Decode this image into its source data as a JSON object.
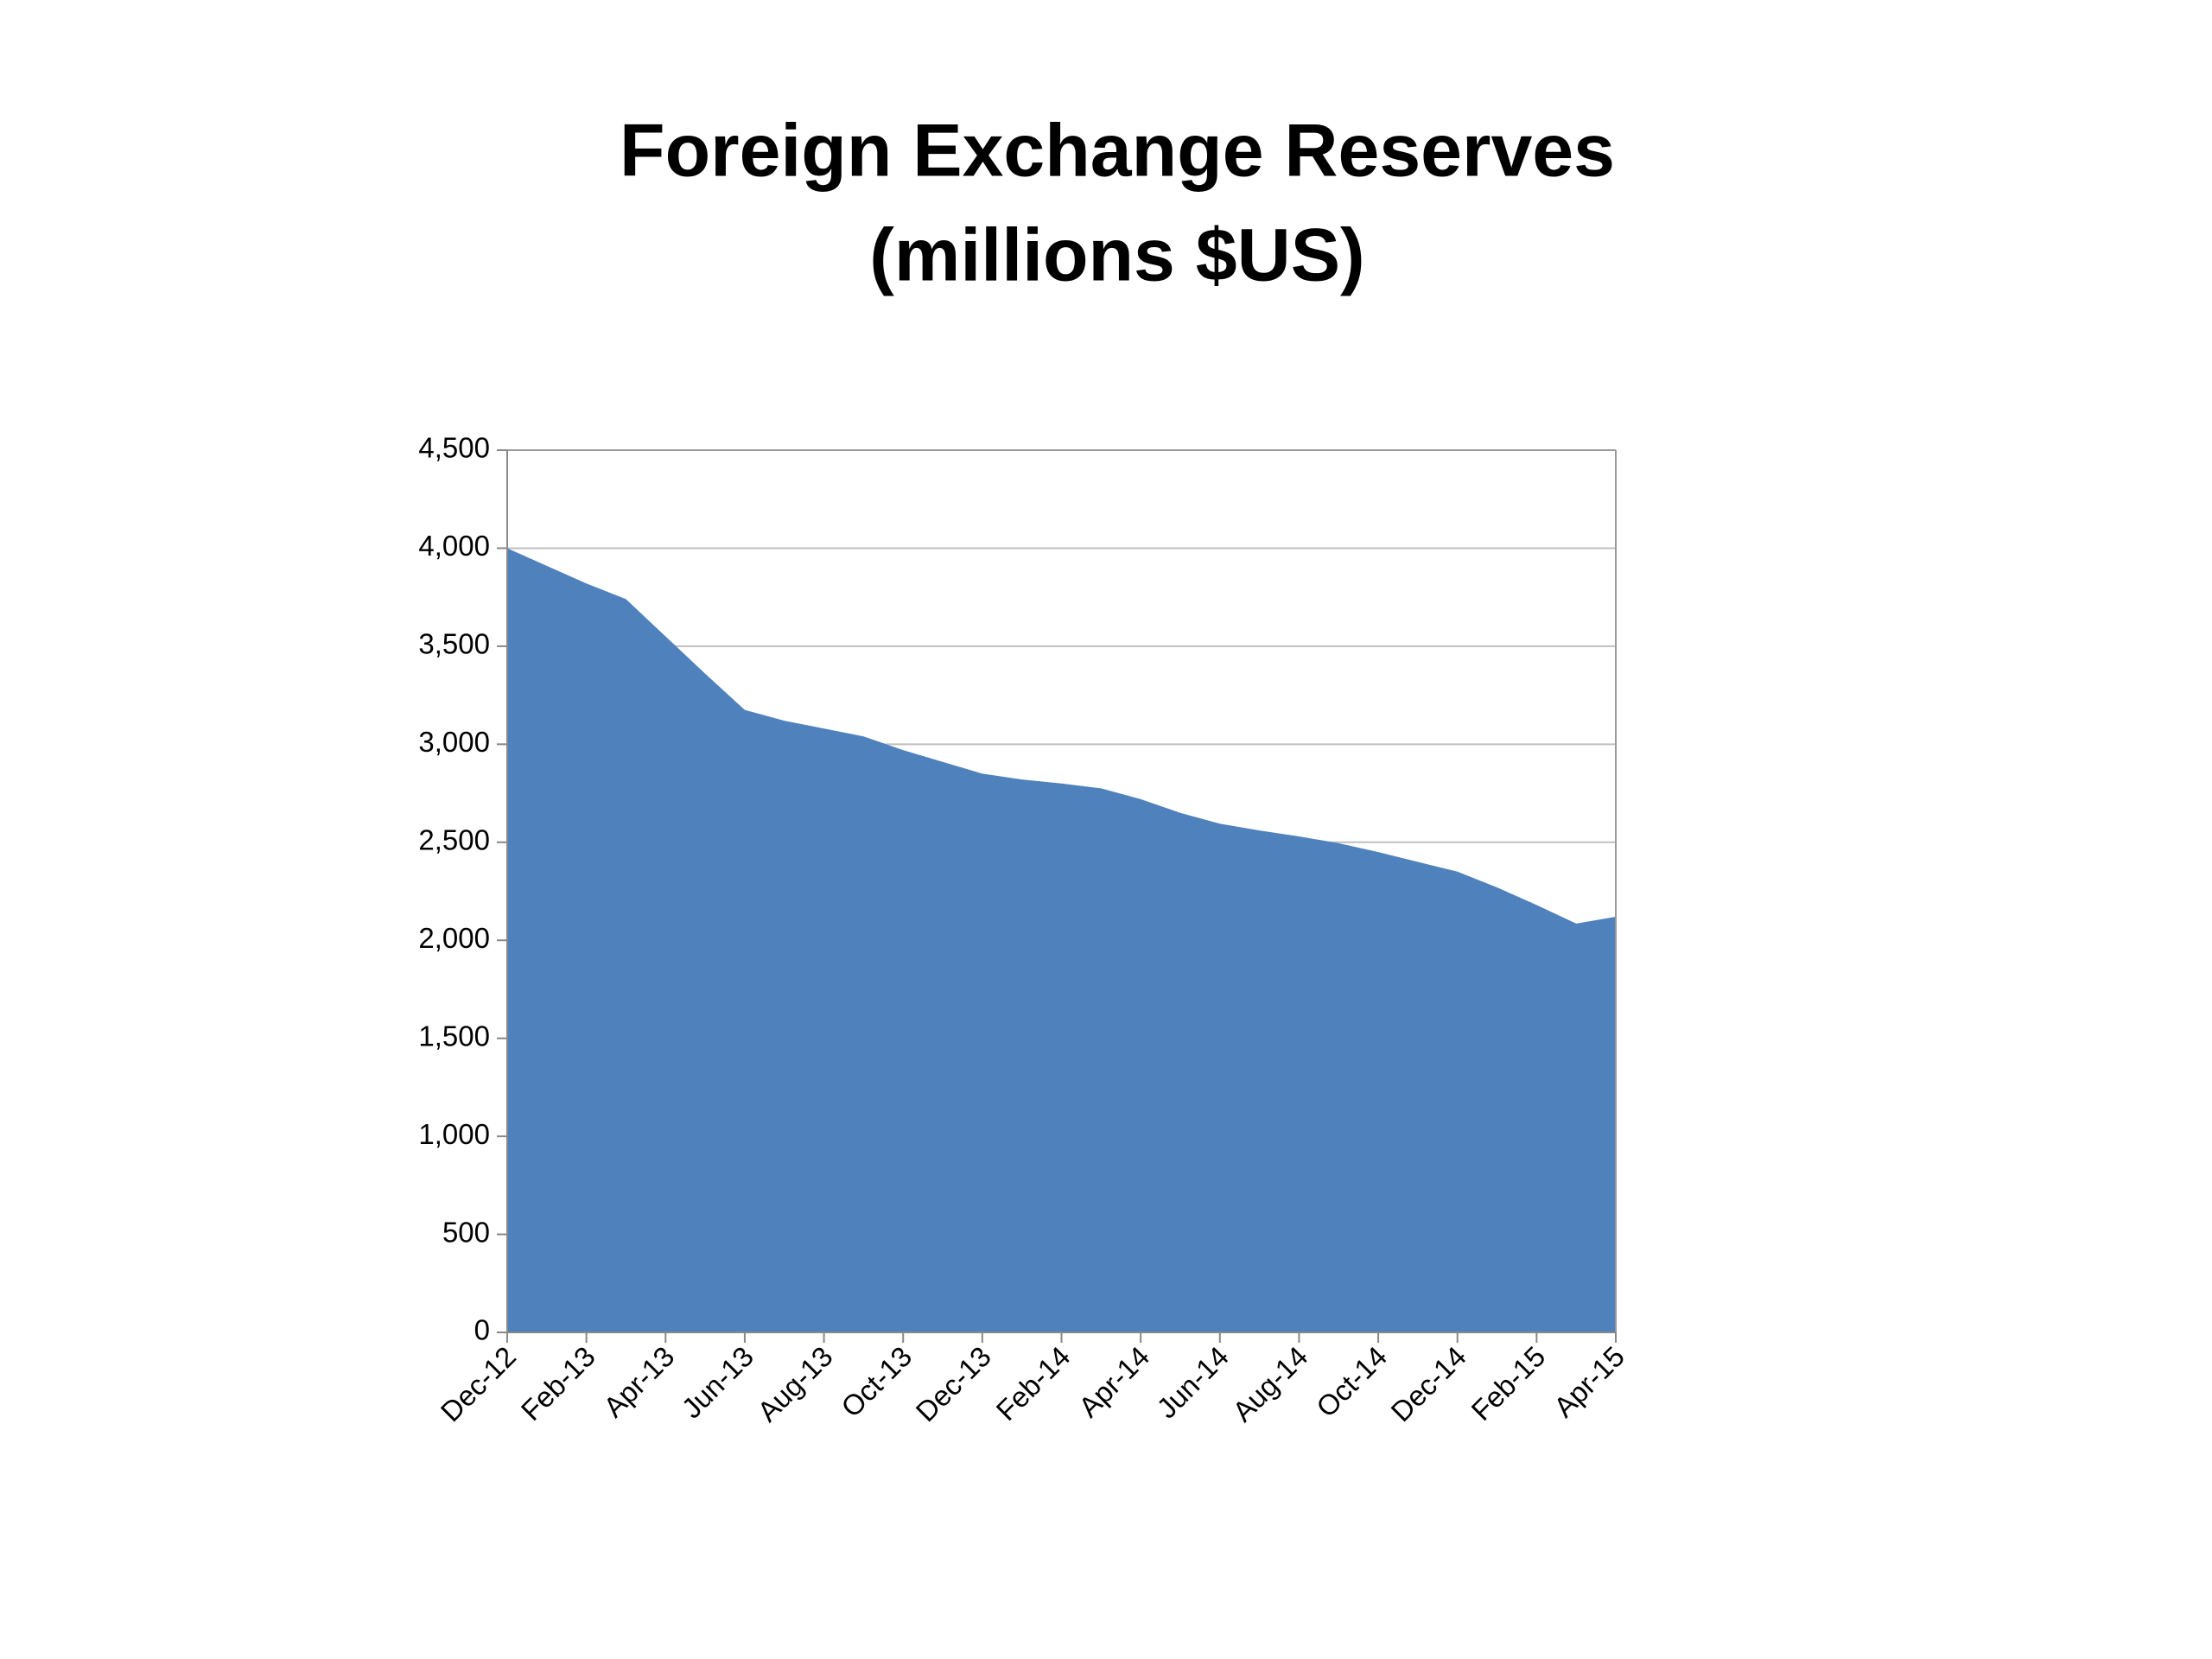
{
  "chart_data": {
    "type": "area",
    "title": [
      "Foreign Exchange Reserves",
      "(millions $US)"
    ],
    "categories": [
      "Dec-12",
      null,
      "Feb-13",
      null,
      "Apr-13",
      null,
      "Jun-13",
      null,
      "Aug-13",
      null,
      "Oct-13",
      null,
      "Dec-13",
      null,
      "Feb-14",
      null,
      "Apr-14",
      null,
      "Jun-14",
      null,
      "Aug-14",
      null,
      "Oct-14",
      null,
      "Dec-14",
      null,
      "Feb-15",
      null,
      "Apr-15"
    ],
    "values": [
      4000,
      3910,
      3820,
      3740,
      3550,
      3360,
      3175,
      3120,
      3080,
      3040,
      2970,
      2910,
      2850,
      2820,
      2800,
      2775,
      2720,
      2650,
      2595,
      2560,
      2530,
      2495,
      2450,
      2400,
      2350,
      2270,
      2180,
      2085,
      2120
    ],
    "color": "#4f81bd",
    "ylim": [
      0,
      4500
    ],
    "yticks": [
      0,
      500,
      {
        "value": 1000,
        "label": "1,000"
      },
      {
        "value": 1500,
        "label": "1,500"
      },
      {
        "value": 2000,
        "label": "2,000"
      },
      {
        "value": 2500,
        "label": "2,500"
      },
      {
        "value": 3000,
        "label": "3,000"
      },
      {
        "value": 3500,
        "label": "3,500"
      },
      {
        "value": 4000,
        "label": "4,000"
      },
      {
        "value": 4500,
        "label": "4,500"
      }
    ],
    "grid": true
  }
}
